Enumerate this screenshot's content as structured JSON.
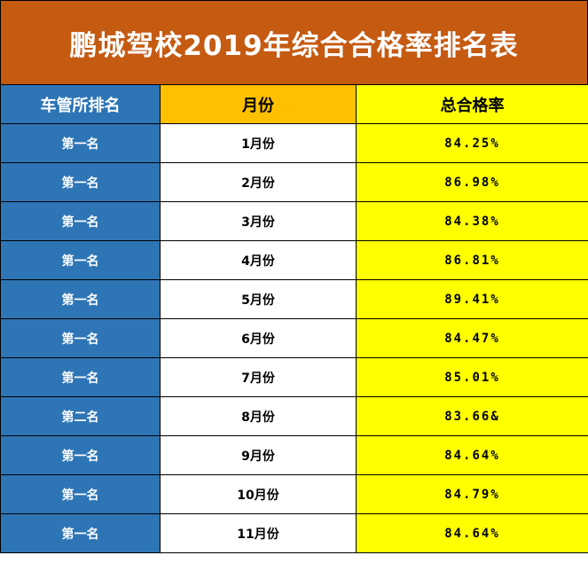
{
  "title": "鹏城驾校2019年综合合格率排名表",
  "headers": {
    "rank": "车管所排名",
    "month": "月份",
    "rate": "总合格率"
  },
  "rows": [
    {
      "rank": "第一名",
      "month": "1月份",
      "rate": "84.25%"
    },
    {
      "rank": "第一名",
      "month": "2月份",
      "rate": "86.98%"
    },
    {
      "rank": "第一名",
      "month": "3月份",
      "rate": "84.38%"
    },
    {
      "rank": "第一名",
      "month": "4月份",
      "rate": "86.81%"
    },
    {
      "rank": "第一名",
      "month": "5月份",
      "rate": "89.41%"
    },
    {
      "rank": "第一名",
      "month": "6月份",
      "rate": "84.47%"
    },
    {
      "rank": "第一名",
      "month": "7月份",
      "rate": "85.01%"
    },
    {
      "rank": "第二名",
      "month": "8月份",
      "rate": "83.66&"
    },
    {
      "rank": "第一名",
      "month": "9月份",
      "rate": "84.64%"
    },
    {
      "rank": "第一名",
      "month": "10月份",
      "rate": "84.79%"
    },
    {
      "rank": "第一名",
      "month": "11月份",
      "rate": "84.64%"
    }
  ],
  "colors": {
    "title_bg": "#c55a11",
    "rank_bg": "#2e75b6",
    "month_header_bg": "#ffc000",
    "rate_bg": "#ffff00"
  }
}
